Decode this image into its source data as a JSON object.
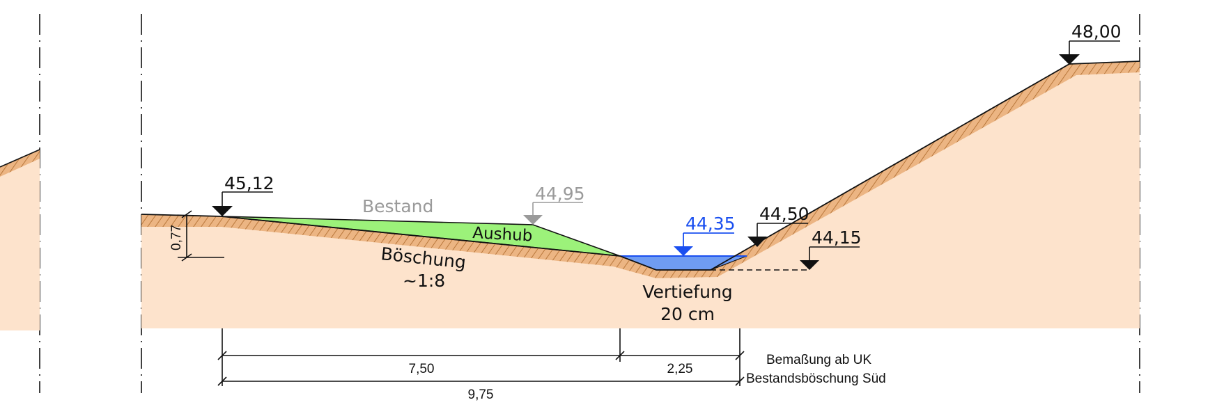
{
  "elevations": {
    "left_top": "45,12",
    "existing_edge": "44,95",
    "water_level": "44,35",
    "right_toe": "44,50",
    "bottom": "44,15",
    "right_top": "48,00"
  },
  "labels": {
    "existing": "Bestand",
    "excavation": "Aushub",
    "slope_line1": "Böschung",
    "slope_line2": "~1:8",
    "deepening_line1": "Vertiefung",
    "deepening_line2": "20 cm"
  },
  "dimensions": {
    "height": "0,77",
    "d1": "7,50",
    "d2": "2,25",
    "total": "9,75"
  },
  "note": {
    "line1": "Bemaßung ab UK",
    "line2": "Bestandsböschung Süd"
  },
  "colors": {
    "soil": "#fde3cc",
    "hatch": "#c8874a",
    "excavation": "#9cf27a",
    "water": "#6f9cf2",
    "existing_marker": "#9a9a9a",
    "water_marker": "#1a4ff0"
  }
}
